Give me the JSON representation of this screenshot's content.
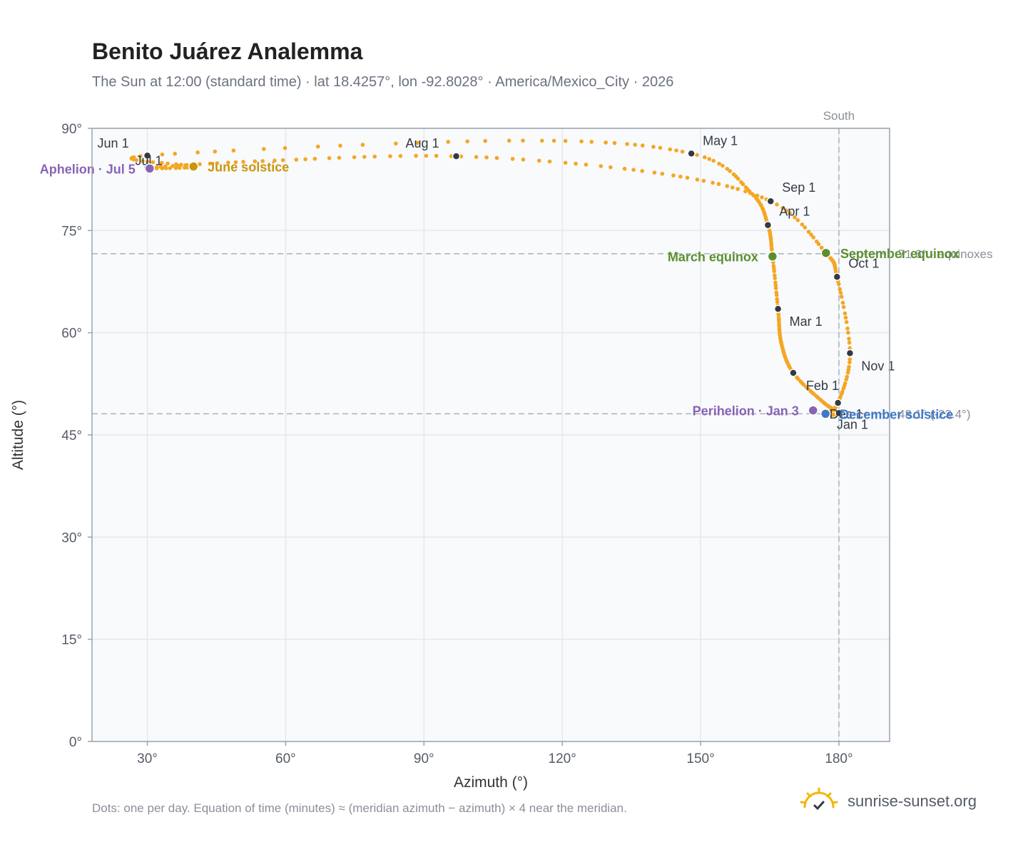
{
  "header": {
    "title": "Benito Juárez Analemma",
    "subtitle": "The Sun at 12:00 (standard time) · lat 18.4257°, lon -92.8028° · America/Mexico_City · 2026"
  },
  "footer": {
    "note": "Dots: one per day. Equation of time (minutes) ≈ (meridian azimuth − azimuth) × 4 near the meridian.",
    "brand": "sunrise-sunset.org"
  },
  "colors": {
    "curve": "#f5a623",
    "month_dot": "#333a44",
    "equinox": "#5b8f2e",
    "solstice_june": "#c9960c",
    "solstice_december": "#3f7ac4",
    "apsis": "#8a63b5",
    "grid": "#e5e8ec",
    "plot_bg": "#f8fafc",
    "frame": "#9aa3ae",
    "ref_line": "#aab2bc"
  },
  "chart_data": {
    "type": "scatter",
    "xlabel": "Azimuth (°)",
    "ylabel": "Altitude (°)",
    "xlim": [
      18,
      191
    ],
    "ylim": [
      0,
      90
    ],
    "xticks": [
      {
        "value": 30,
        "label": "30°"
      },
      {
        "value": 60,
        "label": "60°"
      },
      {
        "value": 90,
        "label": "90°"
      },
      {
        "value": 120,
        "label": "120°"
      },
      {
        "value": 150,
        "label": "150°"
      },
      {
        "value": 180,
        "label": "180°"
      }
    ],
    "yticks": [
      {
        "value": 0,
        "label": "0°"
      },
      {
        "value": 15,
        "label": "15°"
      },
      {
        "value": 30,
        "label": "30°"
      },
      {
        "value": 45,
        "label": "45°"
      },
      {
        "value": 60,
        "label": "60°"
      },
      {
        "value": 75,
        "label": "75°"
      },
      {
        "value": 90,
        "label": "90°"
      }
    ],
    "grid": true,
    "reference_lines": {
      "meridian": {
        "azimuth": 180,
        "label": "South"
      },
      "equinox_altitude": {
        "altitude": 71.6,
        "label": "71.6° · equinoxes"
      },
      "december_altitude": {
        "altitude": 48.1,
        "label": "48.1° (Dec)",
        "annotation": "48.1° (-23.4°)"
      }
    },
    "series": [
      {
        "kind": "daily_path",
        "points": [
          {
            "date": "Jan 1",
            "azimuth": 180.0,
            "altitude": 48.2
          },
          {
            "date": "Jan 15",
            "azimuth": 176.6,
            "altitude": 49.8
          },
          {
            "date": "Feb 1",
            "azimuth": 170.1,
            "altitude": 54.1
          },
          {
            "date": "Feb 15",
            "azimuth": 167.5,
            "altitude": 58.5
          },
          {
            "date": "Mar 1",
            "azimuth": 166.8,
            "altitude": 63.5
          },
          {
            "date": "Mar 20",
            "azimuth": 165.6,
            "altitude": 71.2
          },
          {
            "date": "Apr 1",
            "azimuth": 164.6,
            "altitude": 75.8
          },
          {
            "date": "Apr 15",
            "azimuth": 161.0,
            "altitude": 80.5
          },
          {
            "date": "May 1",
            "azimuth": 148.0,
            "altitude": 86.3
          },
          {
            "date": "May 15",
            "azimuth": 110.0,
            "altitude": 88.2
          },
          {
            "date": "Jun 1",
            "azimuth": 30.0,
            "altitude": 86.0
          },
          {
            "date": "Jun 21",
            "azimuth": 40.0,
            "altitude": 84.4
          },
          {
            "date": "Jul 1",
            "azimuth": 30.0,
            "altitude": 84.2
          },
          {
            "date": "Jul 15",
            "azimuth": 55.0,
            "altitude": 85.2
          },
          {
            "date": "Aug 1",
            "azimuth": 97.0,
            "altitude": 85.9
          },
          {
            "date": "Aug 15",
            "azimuth": 140.0,
            "altitude": 83.5
          },
          {
            "date": "Sep 1",
            "azimuth": 165.2,
            "altitude": 79.3
          },
          {
            "date": "Sep 23",
            "azimuth": 177.2,
            "altitude": 71.7
          },
          {
            "date": "Oct 1",
            "azimuth": 179.6,
            "altitude": 68.2
          },
          {
            "date": "Nov 1",
            "azimuth": 182.4,
            "altitude": 57.0
          },
          {
            "date": "Dec 1",
            "azimuth": 179.8,
            "altitude": 49.7
          },
          {
            "date": "Dec 21",
            "azimuth": 177.1,
            "altitude": 48.1
          }
        ]
      }
    ],
    "month_markers": [
      {
        "label": "Jan 1",
        "azimuth": 180.0,
        "altitude": 48.2,
        "lx": -3,
        "ly": 22
      },
      {
        "label": "Feb 1",
        "azimuth": 170.1,
        "altitude": 54.1,
        "lx": 18,
        "ly": 24
      },
      {
        "label": "Mar 1",
        "azimuth": 166.8,
        "altitude": 63.5,
        "lx": 16,
        "ly": 24
      },
      {
        "label": "Apr 1",
        "azimuth": 164.6,
        "altitude": 75.8,
        "lx": 16,
        "ly": -13
      },
      {
        "label": "May 1",
        "azimuth": 148.0,
        "altitude": 86.3,
        "lx": 16,
        "ly": -12
      },
      {
        "label": "Jun 1",
        "azimuth": 30.0,
        "altitude": 86.0,
        "lx": -70,
        "ly": -11
      },
      {
        "label": "Jul 1",
        "azimuth": 30.0,
        "altitude": 84.2,
        "lx": -17,
        "ly": -4
      },
      {
        "label": "Aug 1",
        "azimuth": 97.0,
        "altitude": 85.9,
        "lx": -71,
        "ly": -12
      },
      {
        "label": "Sep 1",
        "azimuth": 165.2,
        "altitude": 79.3,
        "lx": 16,
        "ly": -13
      },
      {
        "label": "Oct 1",
        "azimuth": 179.6,
        "altitude": 68.2,
        "lx": 16,
        "ly": -13
      },
      {
        "label": "Nov 1",
        "azimuth": 182.4,
        "altitude": 57.0,
        "lx": 16,
        "ly": 24
      },
      {
        "label": "Dec 1",
        "azimuth": 179.8,
        "altitude": 49.7,
        "lx": -12,
        "ly": 22
      }
    ],
    "events": [
      {
        "label": "March equinox",
        "azimuth": 165.6,
        "altitude": 71.2,
        "color": "#5b8f2e",
        "side": "left"
      },
      {
        "label": "September equinox",
        "azimuth": 177.2,
        "altitude": 71.7,
        "color": "#5b8f2e",
        "side": "right"
      },
      {
        "label": "June solstice",
        "azimuth": 40.0,
        "altitude": 84.4,
        "color": "#c9960c",
        "side": "right"
      },
      {
        "label": "December solstice",
        "azimuth": 177.1,
        "altitude": 48.1,
        "color": "#3f7ac4",
        "side": "right"
      },
      {
        "label": "Perihelion · Jan 3",
        "azimuth": 174.4,
        "altitude": 48.6,
        "color": "#8a63b5",
        "side": "left"
      },
      {
        "label": "Aphelion · Jul 5",
        "azimuth": 30.5,
        "altitude": 84.1,
        "color": "#8a63b5",
        "side": "left"
      }
    ]
  }
}
